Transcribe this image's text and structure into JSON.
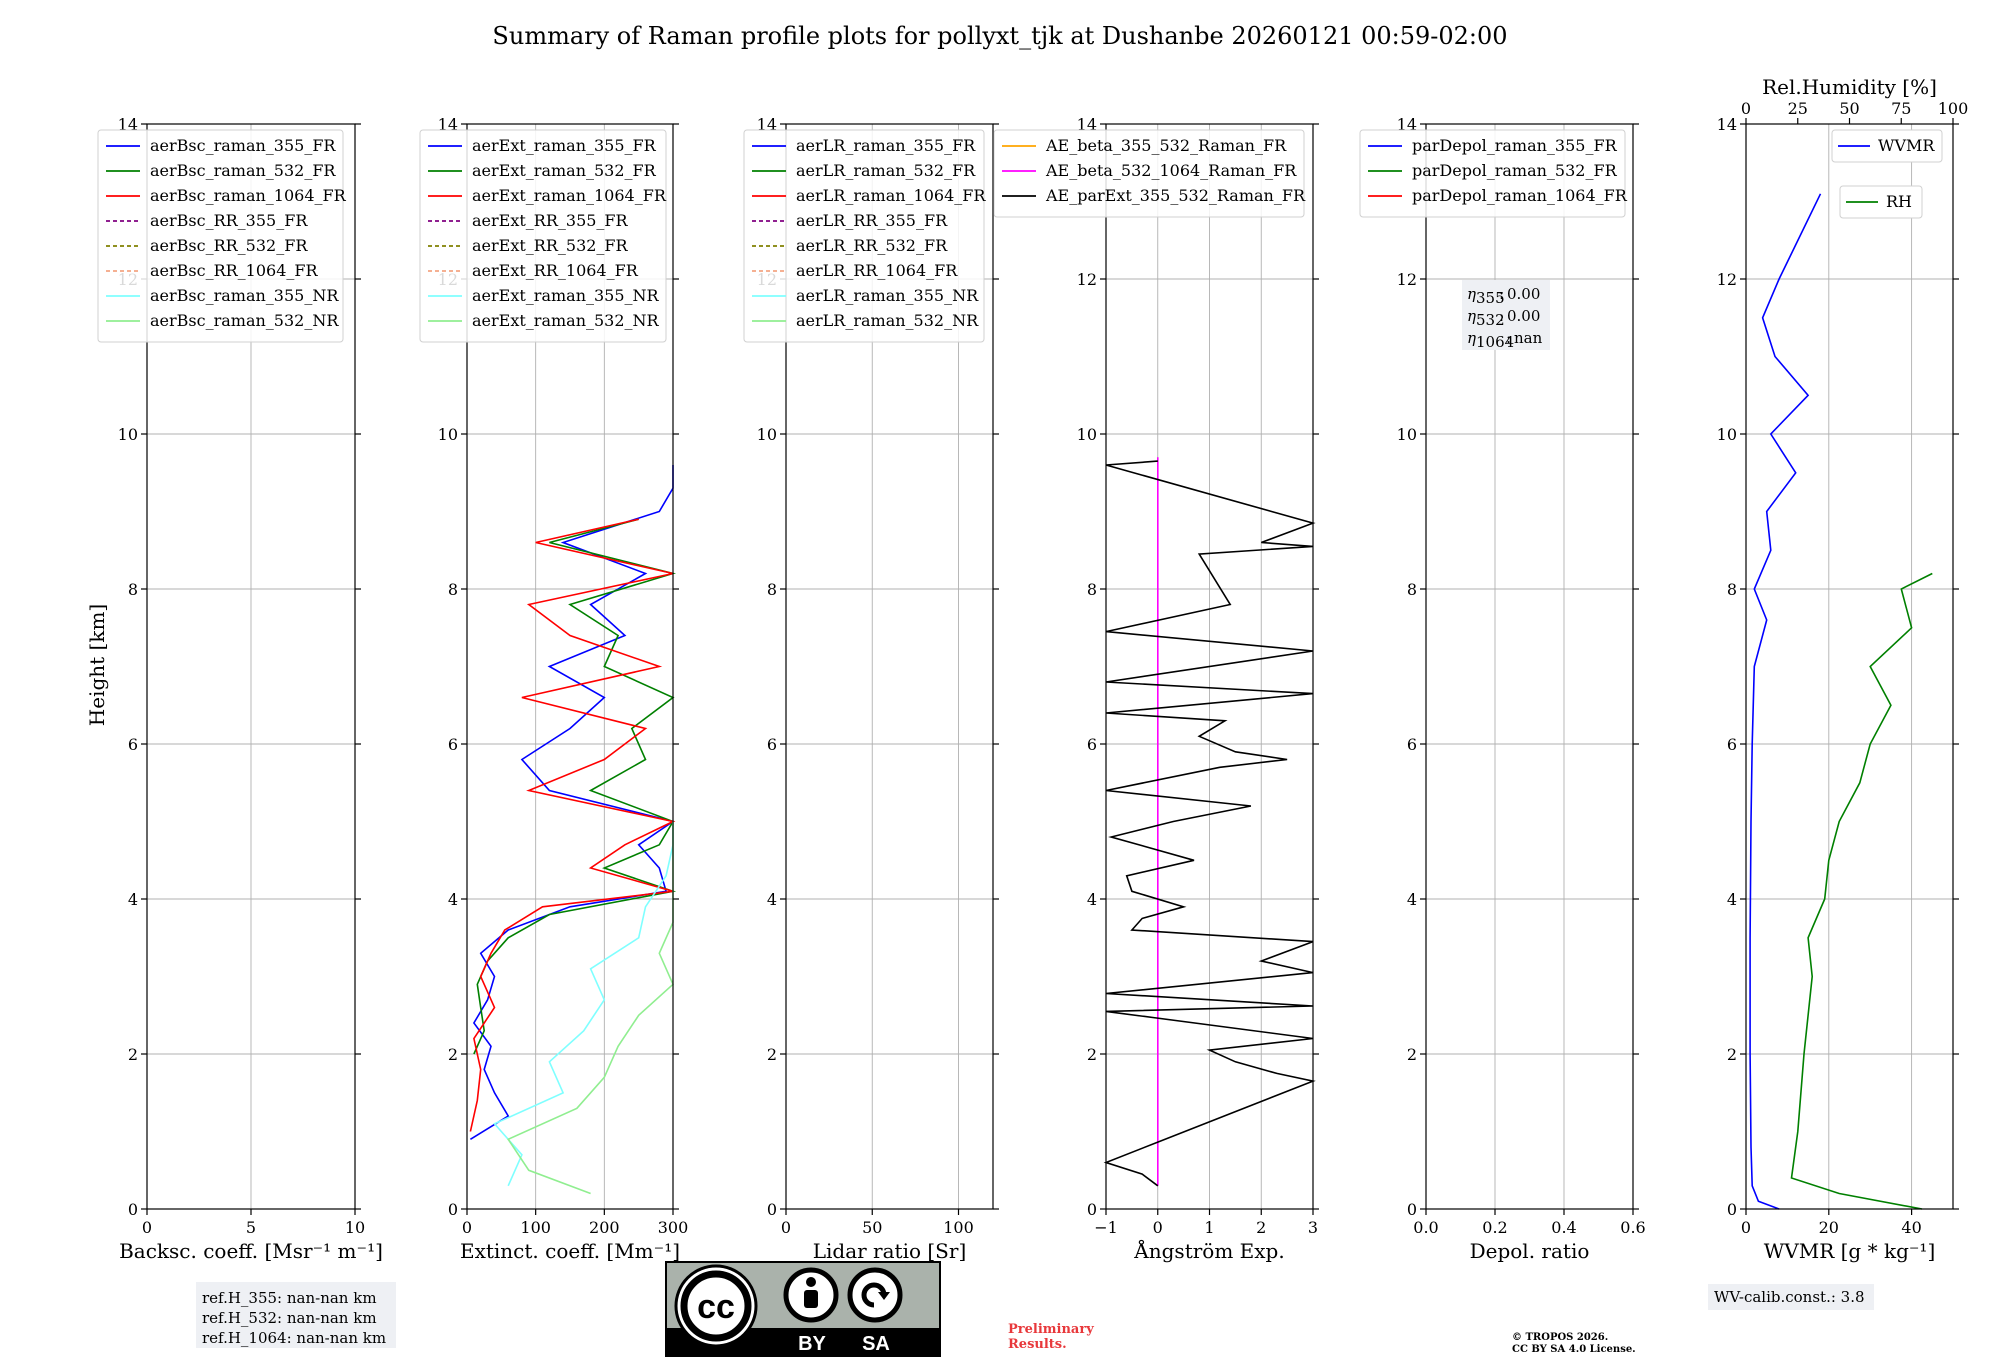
{
  "title": "Summary of Raman profile plots for pollyxt_tjk at Dushanbe 20260121 00:59-02:00",
  "ylabel": "Height [km]",
  "yticks": [
    "0",
    "2",
    "4",
    "6",
    "8",
    "10",
    "12",
    "14"
  ],
  "panels": [
    {
      "id": "bsc",
      "xlabel": "Backsc. coeff. [Msr⁻¹ m⁻¹]",
      "xticks": [
        "0",
        "5",
        "10"
      ],
      "legend": [
        {
          "label": "aerBsc_raman_355_FR",
          "color": "#0000ff",
          "style": "solid"
        },
        {
          "label": "aerBsc_raman_532_FR",
          "color": "#008000",
          "style": "solid"
        },
        {
          "label": "aerBsc_raman_1064_FR",
          "color": "#ff0000",
          "style": "solid"
        },
        {
          "label": "aerBsc_RR_355_FR",
          "color": "#800080",
          "style": "dashed"
        },
        {
          "label": "aerBsc_RR_532_FR",
          "color": "#808000",
          "style": "dashed"
        },
        {
          "label": "aerBsc_RR_1064_FR",
          "color": "#f4a582",
          "style": "dashed"
        },
        {
          "label": "aerBsc_raman_355_NR",
          "color": "#7fffff",
          "style": "solid"
        },
        {
          "label": "aerBsc_raman_532_NR",
          "color": "#90ee90",
          "style": "solid"
        }
      ]
    },
    {
      "id": "ext",
      "xlabel": "Extinct. coeff. [Mm⁻¹]",
      "xticks": [
        "0",
        "100",
        "200",
        "300"
      ],
      "legend": [
        {
          "label": "aerExt_raman_355_FR",
          "color": "#0000ff",
          "style": "solid"
        },
        {
          "label": "aerExt_raman_532_FR",
          "color": "#008000",
          "style": "solid"
        },
        {
          "label": "aerExt_raman_1064_FR",
          "color": "#ff0000",
          "style": "solid"
        },
        {
          "label": "aerExt_RR_355_FR",
          "color": "#800080",
          "style": "dashed"
        },
        {
          "label": "aerExt_RR_532_FR",
          "color": "#808000",
          "style": "dashed"
        },
        {
          "label": "aerExt_RR_1064_FR",
          "color": "#f4a582",
          "style": "dashed"
        },
        {
          "label": "aerExt_raman_355_NR",
          "color": "#7fffff",
          "style": "solid"
        },
        {
          "label": "aerExt_raman_532_NR",
          "color": "#90ee90",
          "style": "solid"
        }
      ]
    },
    {
      "id": "lr",
      "xlabel": "Lidar ratio [Sr]",
      "xticks": [
        "0",
        "50",
        "100"
      ],
      "legend": [
        {
          "label": "aerLR_raman_355_FR",
          "color": "#0000ff",
          "style": "solid"
        },
        {
          "label": "aerLR_raman_532_FR",
          "color": "#008000",
          "style": "solid"
        },
        {
          "label": "aerLR_raman_1064_FR",
          "color": "#ff0000",
          "style": "solid"
        },
        {
          "label": "aerLR_RR_355_FR",
          "color": "#800080",
          "style": "dashed"
        },
        {
          "label": "aerLR_RR_532_FR",
          "color": "#808000",
          "style": "dashed"
        },
        {
          "label": "aerLR_RR_1064_FR",
          "color": "#f4a582",
          "style": "dashed"
        },
        {
          "label": "aerLR_raman_355_NR",
          "color": "#7fffff",
          "style": "solid"
        },
        {
          "label": "aerLR_raman_532_NR",
          "color": "#90ee90",
          "style": "solid"
        }
      ]
    },
    {
      "id": "ae",
      "xlabel": "Ångström Exp.",
      "xticks": [
        "−1",
        "0",
        "1",
        "2",
        "3"
      ],
      "legend": [
        {
          "label": "AE_beta_355_532_Raman_FR",
          "color": "#ffa500",
          "style": "solid"
        },
        {
          "label": "AE_beta_532_1064_Raman_FR",
          "color": "#ff00ff",
          "style": "solid"
        },
        {
          "label": "AE_parExt_355_532_Raman_FR",
          "color": "#000000",
          "style": "solid"
        }
      ]
    },
    {
      "id": "dep",
      "xlabel": "Depol. ratio",
      "xticks": [
        "0.0",
        "0.2",
        "0.4",
        "0.6"
      ],
      "legend": [
        {
          "label": "parDepol_raman_355_FR",
          "color": "#0000ff",
          "style": "solid"
        },
        {
          "label": "parDepol_raman_532_FR",
          "color": "#008000",
          "style": "solid"
        },
        {
          "label": "parDepol_raman_1064_FR",
          "color": "#ff0000",
          "style": "solid"
        }
      ],
      "eta": [
        {
          "sub": "355",
          "value": "0.00"
        },
        {
          "sub": "532",
          "value": "0.00"
        },
        {
          "sub": "1064",
          "value": "nan"
        }
      ]
    },
    {
      "id": "wv",
      "xlabel": "WVMR [g * kg⁻¹]",
      "xticks": [
        "0",
        "20",
        "40"
      ],
      "top_label": "Rel.Humidity [%]",
      "top_ticks": [
        "0",
        "25",
        "50",
        "75",
        "100"
      ],
      "legend_wvmr": {
        "label": "WVMR",
        "color": "#0000ff"
      },
      "legend_rh": {
        "label": "RH",
        "color": "#008000"
      }
    }
  ],
  "refbox": [
    "ref.H_355: nan-nan km",
    "ref.H_532: nan-nan km",
    "ref.H_1064: nan-nan km"
  ],
  "wvcalib": "WV-calib.const.: 3.8",
  "cc_badge": {
    "text1": "BY",
    "text2": "SA"
  },
  "prelim": [
    "Preliminary",
    "Results."
  ],
  "copyright": [
    "© TROPOS 2026.",
    "CC BY SA 4.0 License."
  ],
  "chart_data": {
    "type": "line",
    "title": "Summary of Raman profile plots for pollyxt_tjk at Dushanbe 20260121 00:59-02:00",
    "ylabel": "Height [km]",
    "ylim": [
      0,
      14
    ],
    "panels": [
      {
        "name": "Backscatter",
        "xlim": [
          0,
          10
        ],
        "series": []
      },
      {
        "name": "Extinction",
        "xlim": [
          0,
          300
        ],
        "series": [
          {
            "name": "aerExt_raman_355_FR",
            "color": "#0000ff",
            "height": [
              0.9,
              1.2,
              1.5,
              1.8,
              2.1,
              2.4,
              2.7,
              3.0,
              3.3,
              3.6,
              3.9,
              4.1,
              4.4,
              4.7,
              5.0,
              5.4,
              5.8,
              6.2,
              6.6,
              7.0,
              7.4,
              7.8,
              8.2,
              8.6,
              9.0,
              9.3,
              9.6
            ],
            "value": [
              5,
              60,
              40,
              25,
              35,
              10,
              30,
              40,
              20,
              60,
              150,
              290,
              280,
              250,
              300,
              120,
              80,
              150,
              200,
              120,
              230,
              180,
              260,
              140,
              280,
              300,
              300
            ]
          },
          {
            "name": "aerExt_raman_532_FR",
            "color": "#008000",
            "height": [
              2.0,
              2.3,
              2.6,
              2.9,
              3.2,
              3.5,
              3.8,
              4.1,
              4.4,
              4.7,
              5.0,
              5.4,
              5.8,
              6.2,
              6.6,
              7.0,
              7.4,
              7.8,
              8.2,
              8.6,
              8.9
            ],
            "value": [
              10,
              25,
              20,
              15,
              30,
              60,
              120,
              300,
              200,
              280,
              300,
              180,
              260,
              240,
              300,
              200,
              220,
              150,
              300,
              120,
              250
            ]
          },
          {
            "name": "aerExt_raman_1064_FR",
            "color": "#ff0000",
            "height": [
              1.0,
              1.4,
              1.8,
              2.2,
              2.6,
              3.0,
              3.3,
              3.6,
              3.9,
              4.1,
              4.4,
              4.7,
              5.0,
              5.4,
              5.8,
              6.2,
              6.6,
              7.0,
              7.4,
              7.8,
              8.2,
              8.6,
              8.9
            ],
            "value": [
              5,
              15,
              20,
              10,
              40,
              20,
              35,
              55,
              110,
              300,
              180,
              230,
              300,
              90,
              200,
              260,
              80,
              280,
              150,
              90,
              300,
              100,
              250
            ]
          },
          {
            "name": "aerExt_raman_355_NR",
            "color": "#7fffff",
            "height": [
              0.3,
              0.7,
              1.1,
              1.5,
              1.9,
              2.3,
              2.7,
              3.1,
              3.5,
              3.9,
              4.3,
              4.7,
              5.0
            ],
            "value": [
              60,
              80,
              40,
              140,
              120,
              170,
              200,
              180,
              250,
              260,
              290,
              300,
              300
            ]
          },
          {
            "name": "aerExt_raman_532_NR",
            "color": "#90ee90",
            "height": [
              0.2,
              0.5,
              0.9,
              1.3,
              1.7,
              2.1,
              2.5,
              2.9,
              3.3,
              3.7,
              4.1,
              4.5,
              5.0
            ],
            "value": [
              180,
              90,
              60,
              160,
              200,
              220,
              250,
              300,
              280,
              300,
              300,
              300,
              300
            ]
          }
        ]
      },
      {
        "name": "Lidar ratio",
        "xlim": [
          0,
          120
        ],
        "series": []
      },
      {
        "name": "Angstrom",
        "xlim": [
          -1,
          3
        ],
        "series": [
          {
            "name": "AE_beta_532_1064_Raman_FR",
            "color": "#ff00ff",
            "height": [
              0.3,
              9.7
            ],
            "value": [
              0,
              0
            ]
          },
          {
            "name": "AE_parExt_355_532_Raman_FR",
            "color": "#000000",
            "height": [
              0.3,
              0.45,
              0.6,
              1.65,
              1.75,
              1.9,
              2.05,
              2.2,
              2.55,
              2.62,
              2.78,
              3.05,
              3.2,
              3.45,
              3.6,
              3.75,
              3.9,
              4.1,
              4.3,
              4.5,
              4.8,
              5.0,
              5.2,
              5.4,
              5.7,
              5.8,
              5.9,
              6.1,
              6.3,
              6.4,
              6.65,
              6.8,
              7.2,
              7.45,
              7.8,
              8.45,
              8.55,
              8.6,
              8.85,
              9.6,
              9.65
            ],
            "value": [
              0,
              -0.3,
              -1,
              3,
              2.3,
              1.5,
              1,
              3,
              -1,
              3,
              -1,
              3,
              2,
              3,
              -0.5,
              -0.3,
              0.5,
              -0.5,
              -0.6,
              0.7,
              -0.9,
              0.3,
              1.8,
              -1,
              1.2,
              2.5,
              1.5,
              0.8,
              1.3,
              -1,
              3,
              -1,
              3,
              -1,
              1.4,
              0.8,
              3,
              2,
              3,
              -1,
              0
            ]
          }
        ]
      },
      {
        "name": "Depol. ratio",
        "xlim": [
          0,
          0.6
        ],
        "series": []
      },
      {
        "name": "WVMR",
        "xlim": [
          0,
          50
        ],
        "series": [
          {
            "name": "WVMR",
            "color": "#0000ff",
            "height": [
              0.0,
              0.1,
              0.3,
              0.8,
              2.0,
              3.5,
              5.0,
              6.0,
              7.0,
              7.6,
              8.0,
              8.5,
              9.0,
              9.5,
              10.0,
              10.5,
              11.0,
              11.5,
              12.0,
              13.1
            ],
            "value": [
              8,
              3,
              1.5,
              1.2,
              1.0,
              1.0,
              1.2,
              1.5,
              2.0,
              5,
              2,
              6,
              5,
              12,
              6,
              15,
              7,
              4,
              8,
              18
            ]
          }
        ],
        "top_axis": {
          "label": "Rel.Humidity [%]",
          "xlim": [
            0,
            100
          ],
          "series": [
            {
              "name": "RH",
              "color": "#008000",
              "height": [
                0.0,
                0.2,
                0.4,
                1.0,
                2.0,
                2.5,
                3.0,
                3.5,
                4.0,
                4.5,
                5.0,
                5.5,
                6.0,
                6.5,
                7.0,
                7.5,
                8.0,
                8.2
              ],
              "value": [
                85,
                45,
                22,
                25,
                28,
                30,
                32,
                30,
                38,
                40,
                45,
                55,
                60,
                70,
                60,
                80,
                75,
                90
              ]
            }
          ]
        }
      }
    ]
  }
}
